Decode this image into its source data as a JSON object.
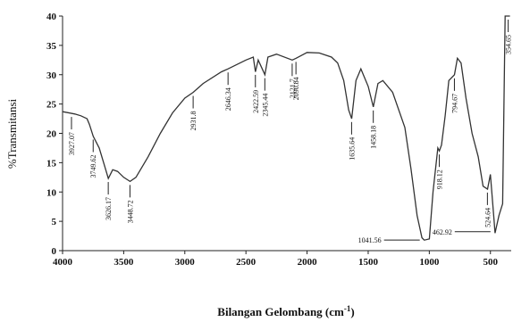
{
  "chart_data": {
    "type": "line",
    "ylabel": "%Transmitansi",
    "xlabel": [
      "Bilangan Gelombang (cm",
      "-1",
      ")"
    ],
    "xlim": [
      4000,
      330
    ],
    "ylim": [
      0,
      40
    ],
    "xticks": [
      4000,
      3500,
      3000,
      2500,
      2000,
      1500,
      1000,
      500
    ],
    "yticks": [
      0,
      5,
      10,
      15,
      20,
      25,
      30,
      35,
      40
    ],
    "color": "#333333",
    "x": [
      4000,
      3900,
      3850,
      3800,
      3780,
      3749,
      3700,
      3650,
      3626,
      3590,
      3550,
      3500,
      3448,
      3400,
      3300,
      3200,
      3100,
      3000,
      2931,
      2850,
      2700,
      2646,
      2500,
      2440,
      2422,
      2400,
      2345,
      2320,
      2250,
      2121,
      2090,
      2000,
      1900,
      1800,
      1750,
      1700,
      1660,
      1635,
      1600,
      1560,
      1500,
      1458,
      1420,
      1380,
      1300,
      1200,
      1150,
      1100,
      1060,
      1041,
      1000,
      970,
      930,
      918,
      900,
      870,
      840,
      794,
      770,
      740,
      700,
      650,
      600,
      560,
      524,
      500,
      470,
      462,
      430,
      400,
      380,
      355,
      340
    ],
    "values": [
      23.7,
      23.3,
      23.0,
      22.5,
      21.5,
      19.5,
      17.5,
      14,
      12.3,
      13.8,
      13.5,
      12.5,
      11.8,
      12.5,
      16,
      20,
      23.5,
      26,
      27,
      28.5,
      30.5,
      31,
      32.5,
      33,
      30.5,
      32.5,
      30,
      33,
      33.5,
      32.5,
      32.8,
      33.8,
      33.7,
      33,
      32,
      29,
      24,
      22.5,
      29,
      31,
      28,
      24.5,
      28.5,
      29,
      27,
      21,
      14,
      6,
      2.2,
      1.8,
      2,
      10,
      17.5,
      17,
      18,
      23,
      29,
      30,
      32.8,
      32,
      26,
      20,
      16,
      11,
      10.5,
      13,
      5,
      3,
      6,
      8,
      40,
      40,
      40
    ],
    "peaks": [
      3927.07,
      3749.62,
      3626.17,
      3448.72,
      2931.8,
      2646.34,
      2422.59,
      2345.44,
      2121.7,
      2090.84,
      1635.64,
      1458.18,
      1041.56,
      918.12,
      794.67,
      524.64,
      462.92,
      354.65
    ]
  }
}
